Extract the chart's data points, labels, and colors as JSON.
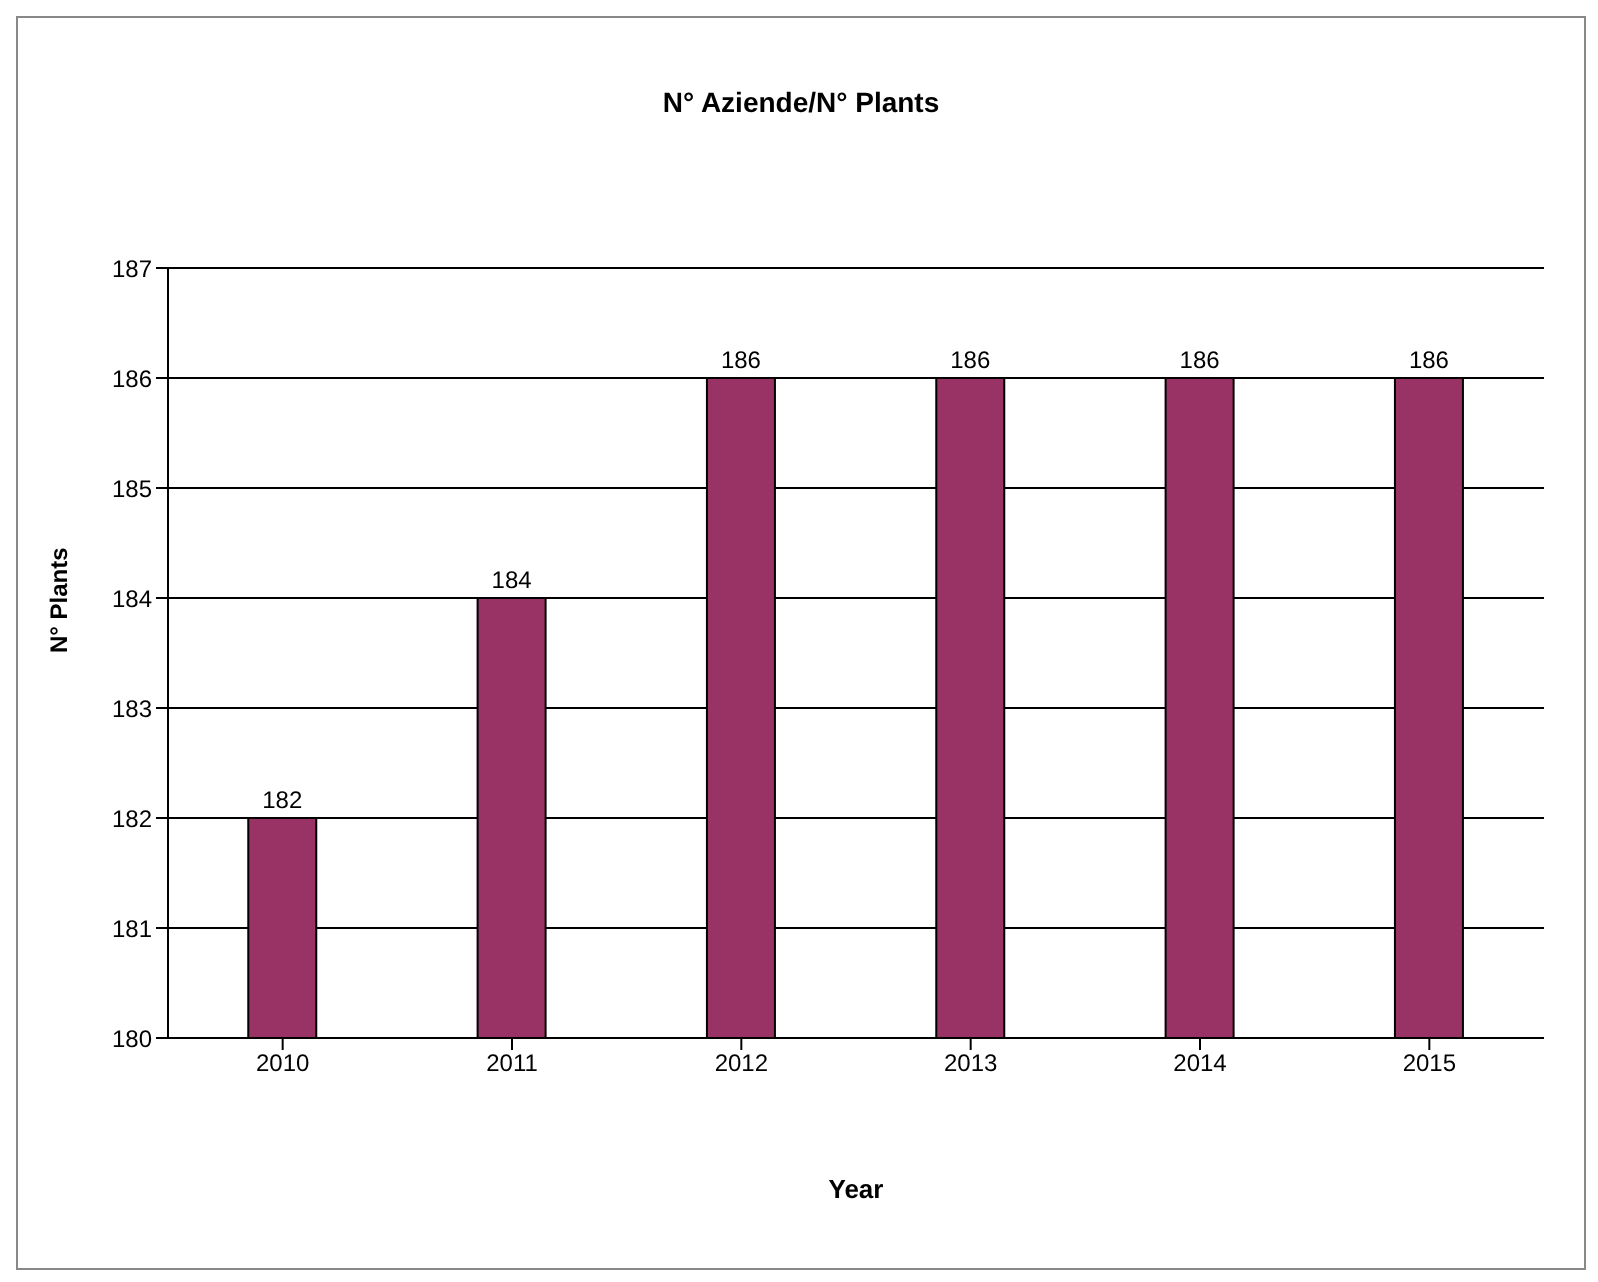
{
  "chart_data": {
    "type": "bar",
    "title": "N° Aziende/N° Plants",
    "xlabel": "Year",
    "ylabel": "N° Plants",
    "categories": [
      "2010",
      "2011",
      "2012",
      "2013",
      "2014",
      "2015"
    ],
    "values": [
      182,
      184,
      186,
      186,
      186,
      186
    ],
    "color": "#993366",
    "ylim": [
      180,
      187
    ],
    "yticks": [
      180,
      181,
      182,
      183,
      184,
      185,
      186,
      187
    ],
    "grid": "y",
    "data_labels": true,
    "legend": false
  }
}
